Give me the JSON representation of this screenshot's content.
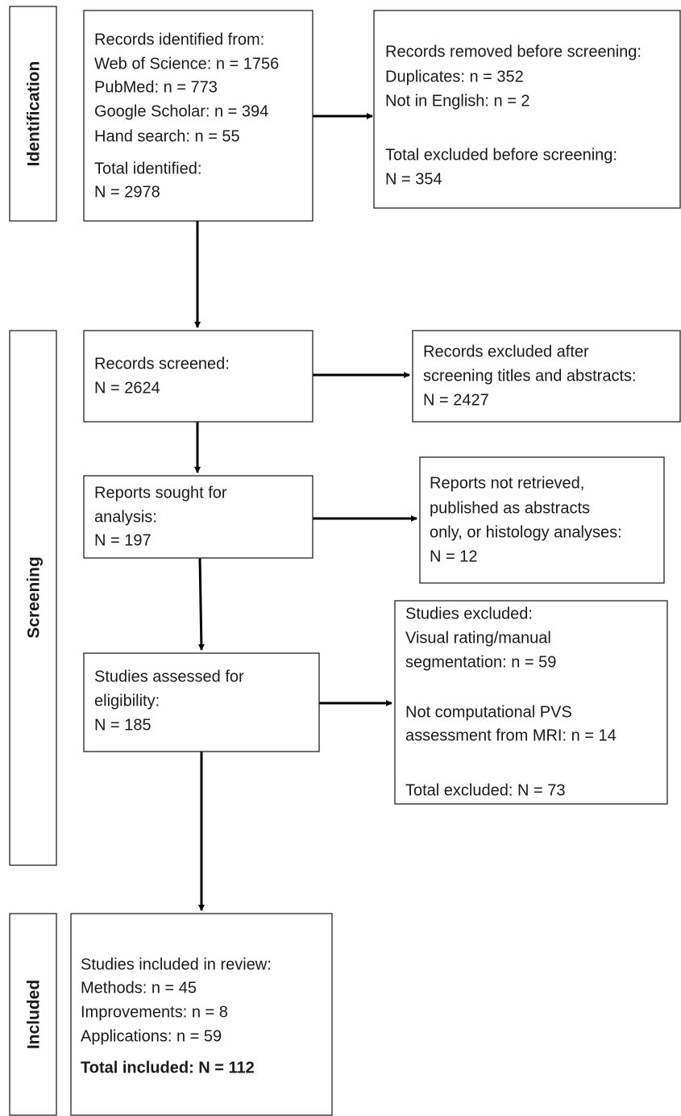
{
  "stages": [
    "Identification",
    "Screening",
    "Included"
  ],
  "nodes": [
    {
      "lines": [
        "Records identified from:",
        "Web of Science: n = 1756",
        "PubMed: n = 773",
        "Google Scholar: n = 394",
        "Hand search: n = 55",
        "Total identified:",
        "N = 2978"
      ]
    },
    {
      "lines": [
        "Records removed before screening:",
        "Duplicates: n = 352",
        "Not in English: n = 2",
        "Total excluded before screening:",
        "N = 354"
      ]
    },
    {
      "lines": [
        "Records screened:",
        "N = 2624"
      ]
    },
    {
      "lines": [
        "Records excluded after",
        "screening titles and abstracts:",
        "N = 2427"
      ]
    },
    {
      "lines": [
        "Reports sought for",
        "analysis:",
        "N = 197"
      ]
    },
    {
      "lines": [
        "Reports not retrieved,",
        "published as abstracts",
        "only, or histology analyses:",
        "N = 12"
      ]
    },
    {
      "lines": [
        "Studies assessed for",
        "eligibility:",
        "N = 185"
      ]
    },
    {
      "lines": [
        "Studies excluded:",
        "Visual rating/manual",
        "segmentation: n = 59",
        "Not computational PVS",
        "assessment from MRI: n = 14",
        "Total excluded: N = 73"
      ]
    },
    {
      "lines": [
        "Studies included in review:",
        "Methods: n = 45",
        "Improvements: n = 8",
        "Applications: n = 59",
        "Total included: N = 112"
      ]
    }
  ]
}
